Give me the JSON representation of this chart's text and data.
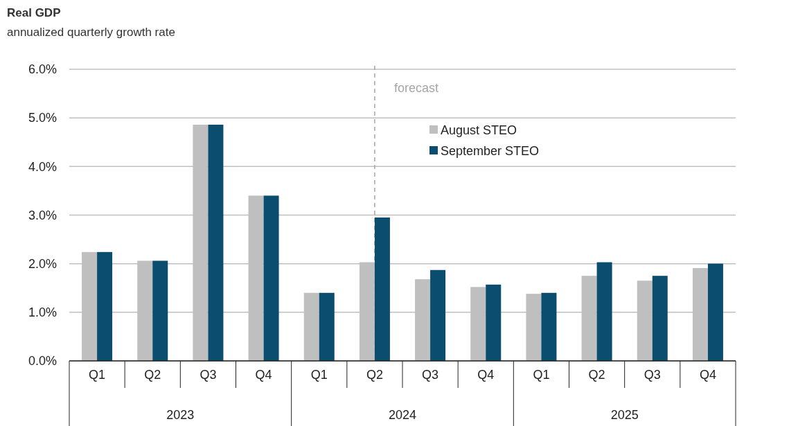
{
  "chart_data": {
    "type": "bar",
    "title": "Real GDP",
    "subtitle": "annualized quarterly growth rate",
    "categories": [
      "Q1",
      "Q2",
      "Q3",
      "Q4",
      "Q1",
      "Q2",
      "Q3",
      "Q4",
      "Q1",
      "Q2",
      "Q3",
      "Q4"
    ],
    "series": [
      {
        "name": "August STEO",
        "color": "#bfbfbf",
        "values": [
          2.24,
          2.06,
          4.86,
          3.4,
          1.4,
          2.03,
          1.68,
          1.52,
          1.38,
          1.75,
          1.65,
          1.91
        ]
      },
      {
        "name": "September STEO",
        "color": "#0b4d6e",
        "values": [
          2.24,
          2.06,
          4.86,
          3.4,
          1.4,
          2.95,
          1.87,
          1.57,
          1.4,
          2.03,
          1.75,
          2.0
        ]
      }
    ],
    "ylim": [
      0,
      6
    ],
    "yticks": [
      {
        "value": 0,
        "label": "0.0%"
      },
      {
        "value": 1,
        "label": "1.0%"
      },
      {
        "value": 2,
        "label": "2.0%"
      },
      {
        "value": 3,
        "label": "3.0%"
      },
      {
        "value": 4,
        "label": "4.0%"
      },
      {
        "value": 5,
        "label": "5.0%"
      },
      {
        "value": 6,
        "label": "6.0%"
      }
    ],
    "grid": "y",
    "legend": "top",
    "annotations": [
      "forecast",
      "2023",
      "2024",
      "2025"
    ]
  }
}
